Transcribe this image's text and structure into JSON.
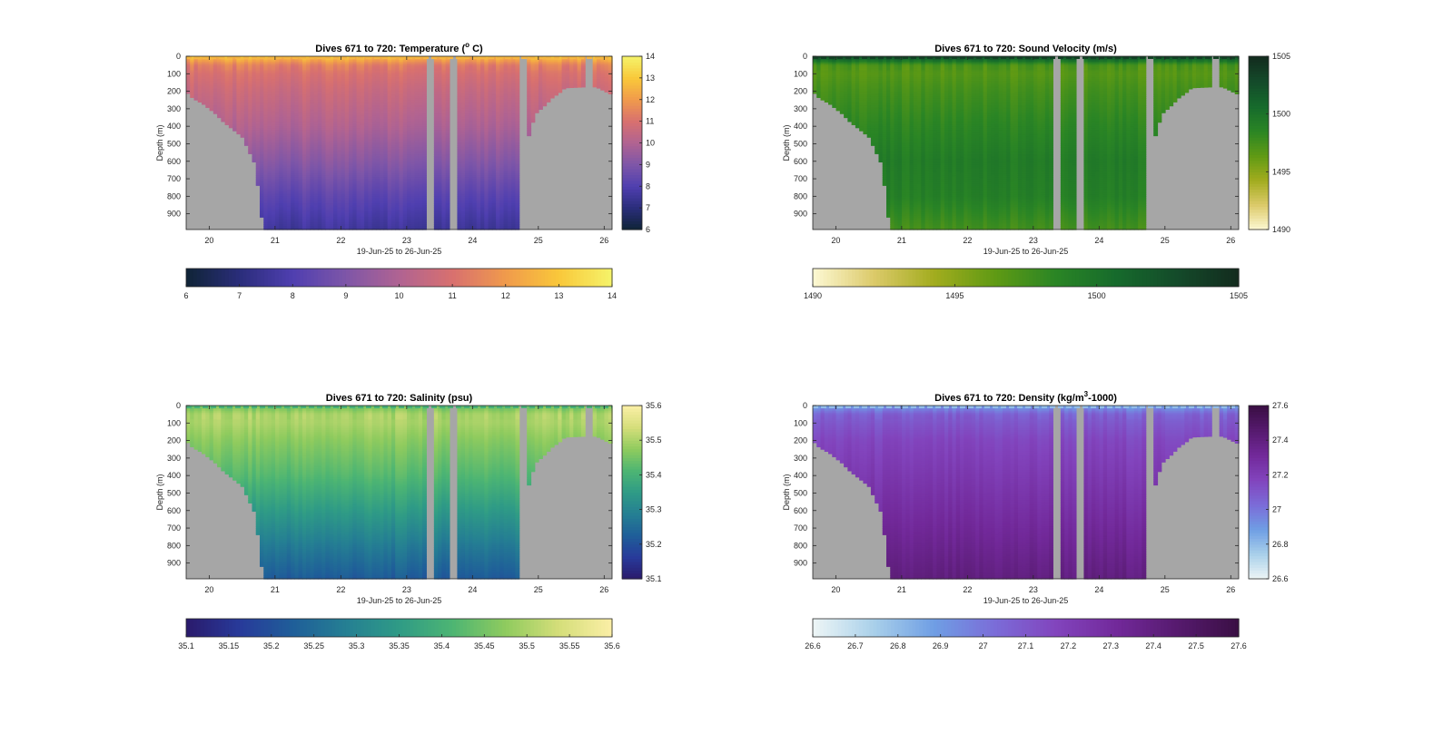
{
  "figure": {
    "xaxis_label": "19-Jun-25 to 26-Jun-25",
    "yaxis_label": "Depth (m)"
  },
  "chart_data": [
    {
      "id": "temperature",
      "type": "heatmap",
      "title": "Dives 671 to 720: Temperature (°C)",
      "title_parts": [
        "Dives 671 to 720: Temperature (",
        "o",
        " C)"
      ],
      "xlabel": "19-Jun-25 to 26-Jun-25",
      "ylabel": "Depth (m)",
      "x_ticks": [
        "20",
        "21",
        "22",
        "23",
        "24",
        "25",
        "26"
      ],
      "y_ticks": [
        "0",
        "100",
        "200",
        "300",
        "400",
        "500",
        "600",
        "700",
        "800",
        "900"
      ],
      "xlim": [
        19.65,
        26.12
      ],
      "ylim": [
        0,
        990
      ],
      "clim": [
        6,
        14
      ],
      "side_colorbar_ticks": [
        "6",
        "7",
        "8",
        "9",
        "10",
        "11",
        "12",
        "13",
        "14"
      ],
      "bottom_colorbar_ticks": [
        "6",
        "7",
        "8",
        "9",
        "10",
        "11",
        "12",
        "13",
        "14"
      ],
      "colormap": [
        "#0f2436",
        "#2a2d7a",
        "#4f3fb0",
        "#7e56a8",
        "#b06392",
        "#d8706f",
        "#f09a4c",
        "#f9c83a",
        "#f5f36a"
      ],
      "profile": {
        "surface": 12.6,
        "depths": [
          0,
          50,
          100,
          200,
          400,
          600,
          800,
          990
        ],
        "values": [
          12.9,
          11.4,
          11.0,
          10.6,
          10.0,
          9.2,
          8.3,
          7.6
        ]
      }
    },
    {
      "id": "sound_velocity",
      "type": "heatmap",
      "title": "Dives 671 to 720: Sound Velocity (m/s)",
      "title_parts": [
        "Dives 671 to 720: Sound Velocity (m/s)",
        "",
        ""
      ],
      "xlabel": "19-Jun-25 to 26-Jun-25",
      "ylabel": "Depth (m)",
      "x_ticks": [
        "20",
        "21",
        "22",
        "23",
        "24",
        "25",
        "26"
      ],
      "y_ticks": [
        "0",
        "100",
        "200",
        "300",
        "400",
        "500",
        "600",
        "700",
        "800",
        "900"
      ],
      "xlim": [
        19.65,
        26.12
      ],
      "ylim": [
        0,
        990
      ],
      "clim": [
        1490,
        1505
      ],
      "side_colorbar_ticks": [
        "1490",
        "1495",
        "1500",
        "1505"
      ],
      "bottom_colorbar_ticks": [
        "1490",
        "1495",
        "1500",
        "1505"
      ],
      "colormap": [
        "#fdf9d4",
        "#dcca6a",
        "#a2ac1e",
        "#5f9a14",
        "#2a8525",
        "#166a2c",
        "#144a2a",
        "#132b1e"
      ],
      "profile": {
        "surface": 1503.5,
        "depths": [
          0,
          50,
          100,
          200,
          400,
          600,
          800,
          990
        ],
        "values": [
          1503.0,
          1497.2,
          1496.8,
          1497.5,
          1498.5,
          1499.3,
          1499.0,
          1497.5
        ]
      }
    },
    {
      "id": "salinity",
      "type": "heatmap",
      "title": "Dives 671 to 720: Salinity (psu)",
      "title_parts": [
        "Dives 671 to 720: Salinity (psu)",
        "",
        ""
      ],
      "xlabel": "19-Jun-25 to 26-Jun-25",
      "ylabel": "Depth (m)",
      "x_ticks": [
        "20",
        "21",
        "22",
        "23",
        "24",
        "25",
        "26"
      ],
      "y_ticks": [
        "0",
        "100",
        "200",
        "300",
        "400",
        "500",
        "600",
        "700",
        "800",
        "900"
      ],
      "xlim": [
        19.65,
        26.12
      ],
      "ylim": [
        0,
        990
      ],
      "clim": [
        35.1,
        35.6
      ],
      "side_colorbar_ticks": [
        "35.1",
        "35.2",
        "35.3",
        "35.4",
        "35.5",
        "35.6"
      ],
      "bottom_colorbar_ticks": [
        "35.1",
        "35.15",
        "35.2",
        "35.25",
        "35.3",
        "35.35",
        "35.4",
        "35.45",
        "35.5",
        "35.55",
        "35.6"
      ],
      "colormap": [
        "#2a1a6b",
        "#283a9a",
        "#1f5e99",
        "#257f93",
        "#2f9b86",
        "#4db573",
        "#8fcb5e",
        "#d5de7a",
        "#fbefa6"
      ],
      "profile": {
        "surface": 35.4,
        "depths": [
          0,
          50,
          100,
          200,
          400,
          600,
          800,
          990
        ],
        "values": [
          35.44,
          35.5,
          35.5,
          35.47,
          35.42,
          35.35,
          35.28,
          35.22
        ]
      }
    },
    {
      "id": "density",
      "type": "heatmap",
      "title": "Dives 671 to 720: Density (kg/m³-1000)",
      "title_parts": [
        "Dives 671 to 720: Density (kg/m",
        "3",
        "-1000)"
      ],
      "xlabel": "19-Jun-25 to 26-Jun-25",
      "ylabel": "Depth (m)",
      "x_ticks": [
        "20",
        "21",
        "22",
        "23",
        "24",
        "25",
        "26"
      ],
      "y_ticks": [
        "0",
        "100",
        "200",
        "300",
        "400",
        "500",
        "600",
        "700",
        "800",
        "900"
      ],
      "xlim": [
        19.65,
        26.12
      ],
      "ylim": [
        0,
        990
      ],
      "clim": [
        26.6,
        27.6
      ],
      "side_colorbar_ticks": [
        "26.6",
        "26.8",
        "27",
        "27.2",
        "27.4",
        "27.6"
      ],
      "bottom_colorbar_ticks": [
        "26.6",
        "26.7",
        "26.8",
        "26.9",
        "27",
        "27.1",
        "27.2",
        "27.3",
        "27.4",
        "27.5",
        "27.6"
      ],
      "colormap": [
        "#eef6f6",
        "#a9d0ea",
        "#6f9ee4",
        "#7b6cd8",
        "#8244bd",
        "#72299a",
        "#561a6e",
        "#3a0f44"
      ],
      "profile": {
        "surface": 26.8,
        "depths": [
          0,
          50,
          100,
          200,
          400,
          600,
          800,
          990
        ],
        "values": [
          26.88,
          27.06,
          27.1,
          27.16,
          27.22,
          27.28,
          27.34,
          27.4
        ]
      }
    }
  ],
  "coverage": {
    "max_depth": 990,
    "bottom_profile": [
      {
        "x": 19.65,
        "depth": 200
      },
      {
        "x": 19.75,
        "depth": 240
      },
      {
        "x": 19.9,
        "depth": 270
      },
      {
        "x": 20.0,
        "depth": 300
      },
      {
        "x": 20.1,
        "depth": 330
      },
      {
        "x": 20.2,
        "depth": 370
      },
      {
        "x": 20.3,
        "depth": 400
      },
      {
        "x": 20.5,
        "depth": 460
      },
      {
        "x": 20.7,
        "depth": 620
      },
      {
        "x": 20.82,
        "depth": 990
      },
      {
        "x": 23.3,
        "depth": 990
      },
      {
        "x": 24.7,
        "depth": 990
      },
      {
        "x": 24.82,
        "depth": 500
      },
      {
        "x": 24.95,
        "depth": 330
      },
      {
        "x": 25.1,
        "depth": 280
      },
      {
        "x": 25.2,
        "depth": 240
      },
      {
        "x": 25.35,
        "depth": 200
      },
      {
        "x": 25.4,
        "depth": 180
      },
      {
        "x": 25.7,
        "depth": 175
      },
      {
        "x": 25.88,
        "depth": 175
      },
      {
        "x": 26.12,
        "depth": 220
      }
    ],
    "gaps": [
      [
        23.28,
        23.42
      ],
      [
        23.63,
        23.77
      ],
      [
        24.7,
        24.82
      ],
      [
        25.72,
        25.85
      ]
    ]
  }
}
